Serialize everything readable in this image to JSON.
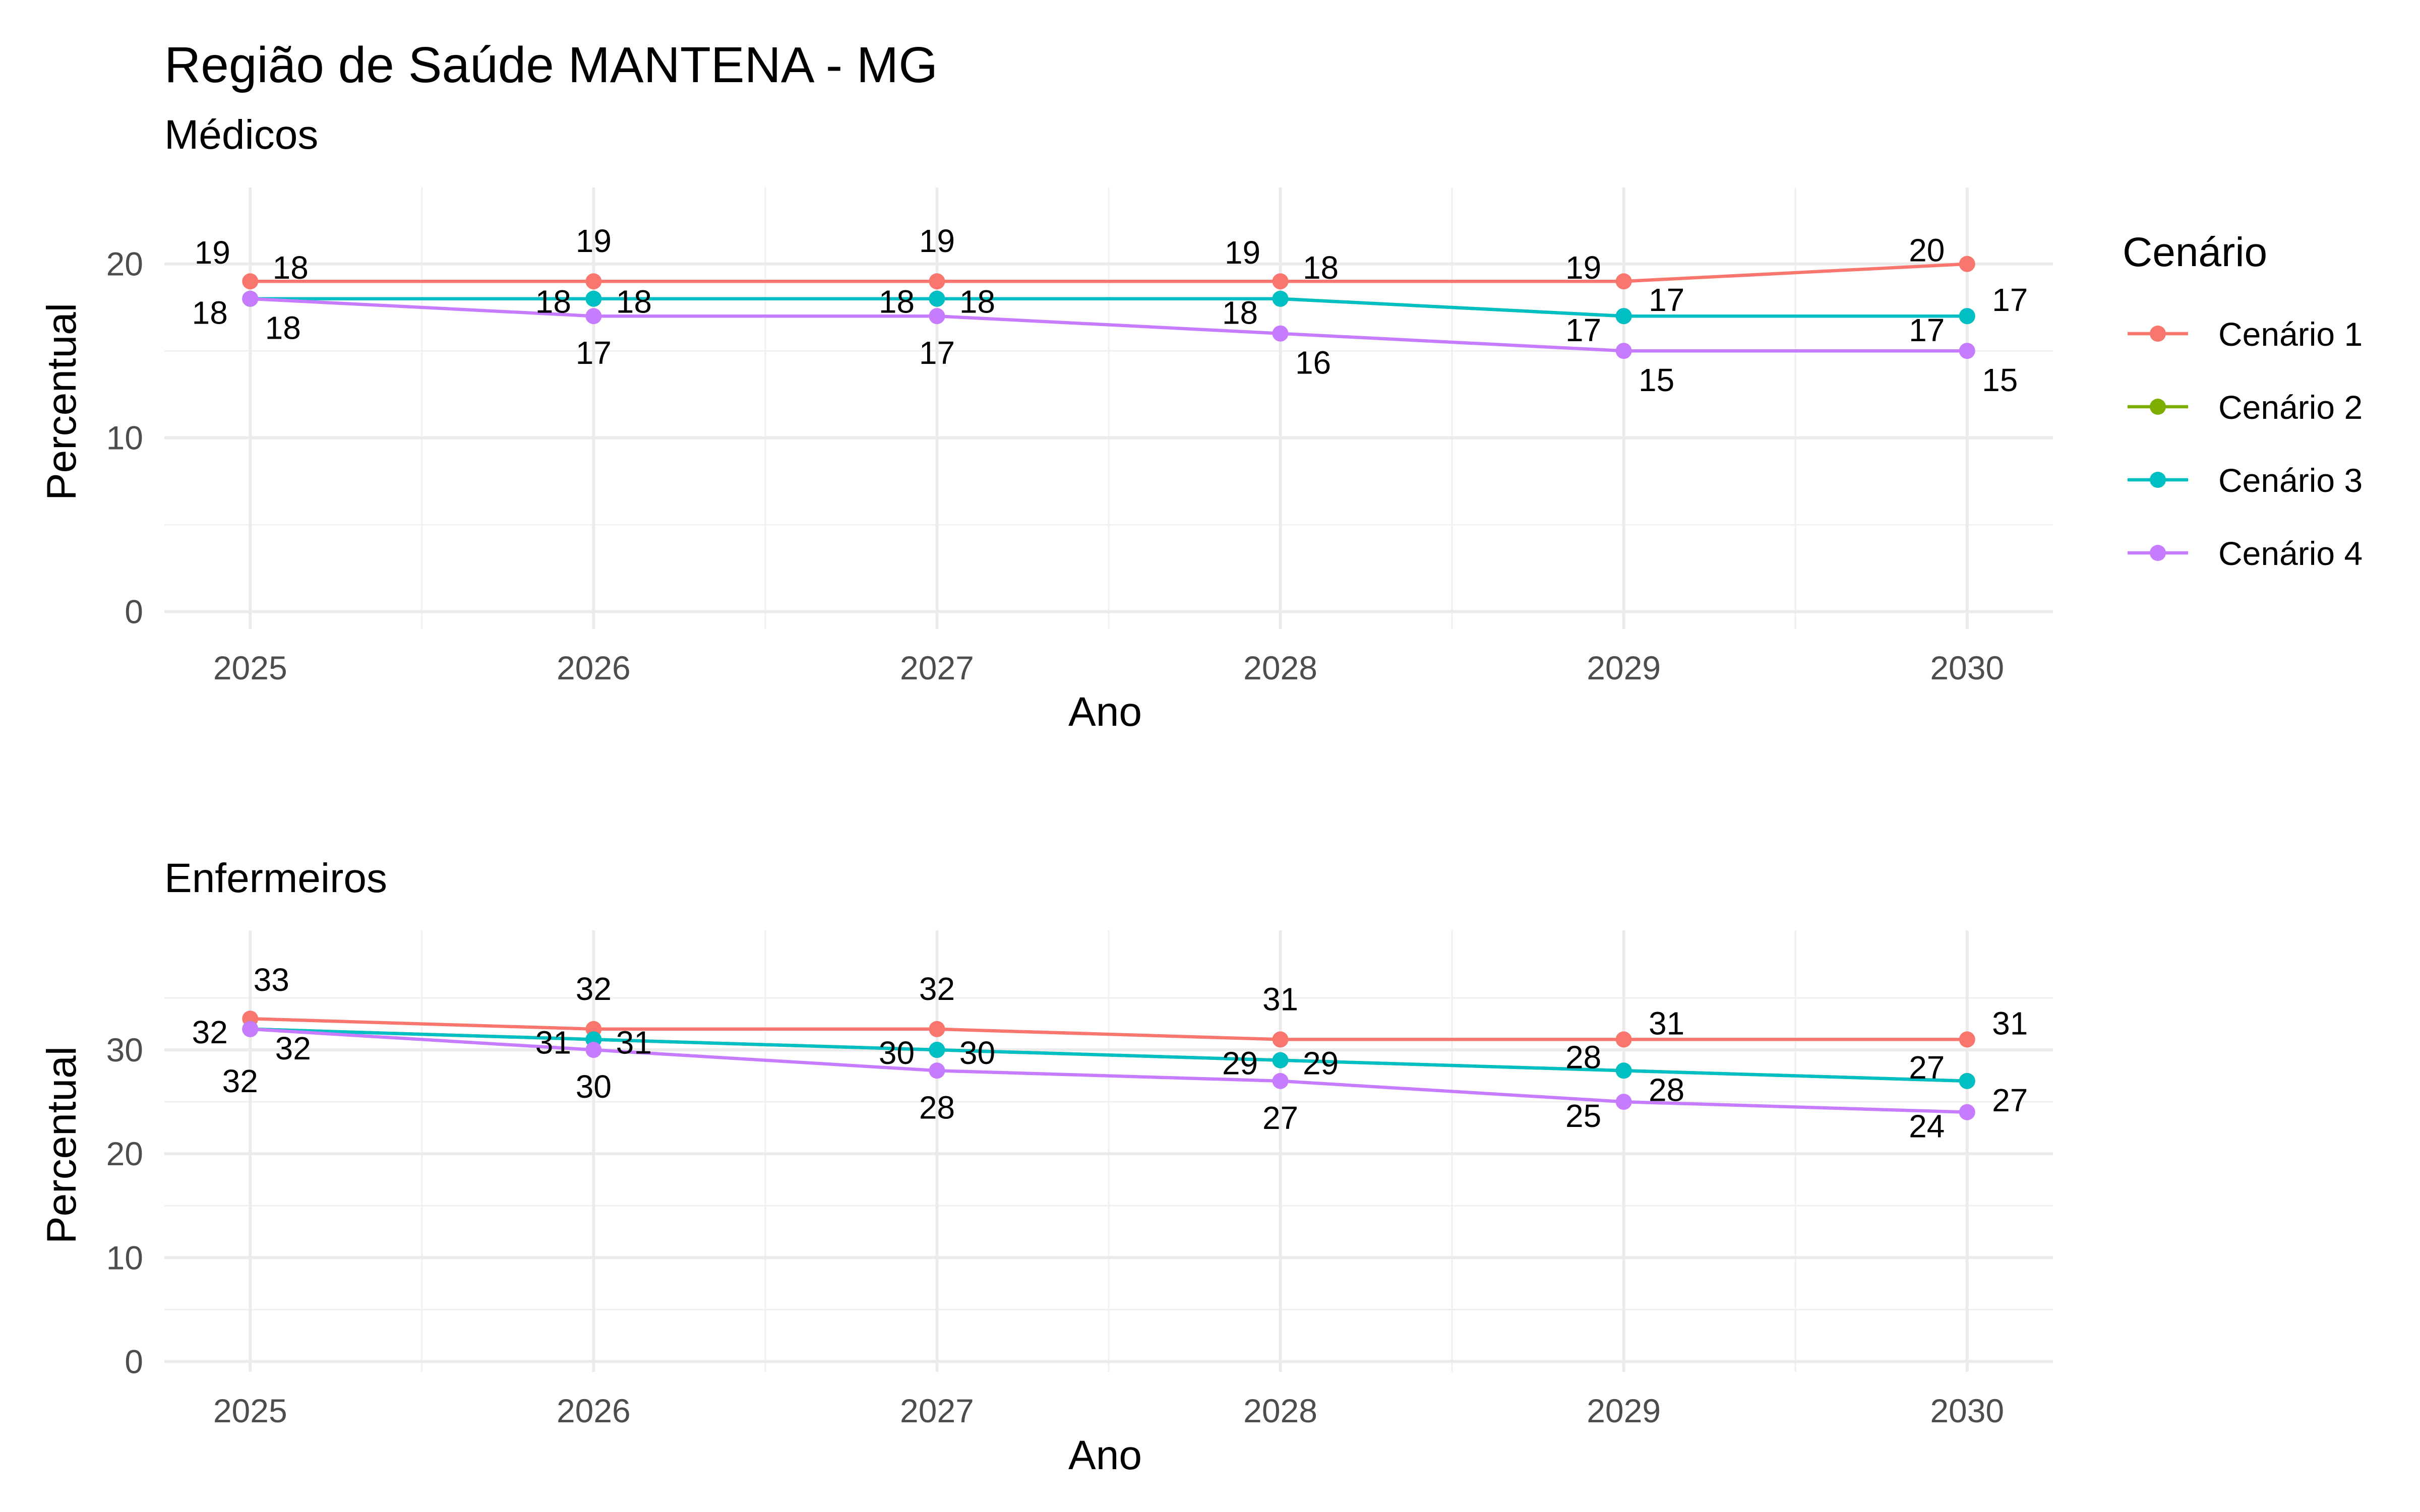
{
  "title": "Região de Saúde MANTENA - MG",
  "legend": {
    "title": "Cenário",
    "position": "right",
    "items": [
      {
        "name": "Cenário 1",
        "color": "#F8766D"
      },
      {
        "name": "Cenário 2",
        "color": "#7CAE00"
      },
      {
        "name": "Cenário 3",
        "color": "#00BFC4"
      },
      {
        "name": "Cenário 4",
        "color": "#C77CFF"
      }
    ]
  },
  "chart_data": [
    {
      "type": "line",
      "subtitle": "Médicos",
      "xlabel": "Ano",
      "ylabel": "Percentual",
      "x": [
        2025,
        2026,
        2027,
        2028,
        2029,
        2030
      ],
      "xticks": [
        "2025",
        "2026",
        "2027",
        "2028",
        "2029",
        "2030"
      ],
      "yticks": [
        "0",
        "10",
        "20"
      ],
      "ylim": [
        -1,
        24.4
      ],
      "grid": true,
      "series": [
        {
          "name": "Cenário 1",
          "color": "#F8766D",
          "values": [
            19,
            19,
            19,
            19,
            19,
            20
          ]
        },
        {
          "name": "Cenário 2",
          "color": "#7CAE00",
          "values": [
            18,
            18,
            18,
            18,
            17,
            17
          ]
        },
        {
          "name": "Cenário 3",
          "color": "#00BFC4",
          "values": [
            18,
            18,
            18,
            18,
            17,
            17
          ]
        },
        {
          "name": "Cenário 4",
          "color": "#C77CFF",
          "values": [
            18,
            17,
            17,
            16,
            15,
            15
          ]
        }
      ],
      "data_labels": [
        {
          "x": 2025,
          "y": 19,
          "text": "19",
          "pos": "up-left"
        },
        {
          "x": 2025,
          "y": 19,
          "text": "18",
          "pos": "right-small"
        },
        {
          "x": 2025,
          "y": 18,
          "text": "18",
          "pos": "left-down"
        },
        {
          "x": 2025,
          "y": 18,
          "text": "18",
          "pos": "down-right"
        },
        {
          "x": 2026,
          "y": 19,
          "text": "19",
          "pos": "up"
        },
        {
          "x": 2026,
          "y": 18,
          "text": "18",
          "pos": "left"
        },
        {
          "x": 2026,
          "y": 18,
          "text": "18",
          "pos": "right"
        },
        {
          "x": 2026,
          "y": 17,
          "text": "17",
          "pos": "down"
        },
        {
          "x": 2027,
          "y": 19,
          "text": "19",
          "pos": "up"
        },
        {
          "x": 2027,
          "y": 18,
          "text": "18",
          "pos": "left"
        },
        {
          "x": 2027,
          "y": 18,
          "text": "18",
          "pos": "right"
        },
        {
          "x": 2027,
          "y": 17,
          "text": "17",
          "pos": "down"
        },
        {
          "x": 2028,
          "y": 19,
          "text": "19",
          "pos": "up-left"
        },
        {
          "x": 2028,
          "y": 19,
          "text": "18",
          "pos": "right-small"
        },
        {
          "x": 2028,
          "y": 18,
          "text": "18",
          "pos": "left-down"
        },
        {
          "x": 2028,
          "y": 16,
          "text": "16",
          "pos": "down-right"
        },
        {
          "x": 2029,
          "y": 19,
          "text": "19",
          "pos": "left-up"
        },
        {
          "x": 2029,
          "y": 17,
          "text": "17",
          "pos": "right-up"
        },
        {
          "x": 2029,
          "y": 17,
          "text": "17",
          "pos": "left-down"
        },
        {
          "x": 2029,
          "y": 15,
          "text": "15",
          "pos": "down-right"
        },
        {
          "x": 2030,
          "y": 20,
          "text": "20",
          "pos": "left-up"
        },
        {
          "x": 2030,
          "y": 17,
          "text": "17",
          "pos": "right-up"
        },
        {
          "x": 2030,
          "y": 17,
          "text": "17",
          "pos": "left-down"
        },
        {
          "x": 2030,
          "y": 15,
          "text": "15",
          "pos": "down-right"
        }
      ]
    },
    {
      "type": "line",
      "subtitle": "Enfermeiros",
      "xlabel": "Ano",
      "ylabel": "Percentual",
      "x": [
        2025,
        2026,
        2027,
        2028,
        2029,
        2030
      ],
      "xticks": [
        "2025",
        "2026",
        "2027",
        "2028",
        "2029",
        "2030"
      ],
      "yticks": [
        "0",
        "10",
        "20",
        "30"
      ],
      "ylim": [
        -1,
        41.5
      ],
      "grid": true,
      "series": [
        {
          "name": "Cenário 1",
          "color": "#F8766D",
          "values": [
            33,
            32,
            32,
            31,
            31,
            31
          ]
        },
        {
          "name": "Cenário 2",
          "color": "#7CAE00",
          "values": [
            32,
            31,
            30,
            29,
            28,
            27
          ]
        },
        {
          "name": "Cenário 3",
          "color": "#00BFC4",
          "values": [
            32,
            31,
            30,
            29,
            28,
            27
          ]
        },
        {
          "name": "Cenário 4",
          "color": "#C77CFF",
          "values": [
            32,
            30,
            28,
            27,
            25,
            24
          ]
        }
      ],
      "data_labels": [
        {
          "x": 2025,
          "y": 33,
          "text": "33",
          "pos": "up-right"
        },
        {
          "x": 2025,
          "y": 32,
          "text": "32",
          "pos": "left"
        },
        {
          "x": 2025,
          "y": 32,
          "text": "32",
          "pos": "right-down"
        },
        {
          "x": 2025,
          "y": 32,
          "text": "32",
          "pos": "far-down"
        },
        {
          "x": 2026,
          "y": 32,
          "text": "32",
          "pos": "up"
        },
        {
          "x": 2026,
          "y": 31,
          "text": "31",
          "pos": "left"
        },
        {
          "x": 2026,
          "y": 31,
          "text": "31",
          "pos": "right"
        },
        {
          "x": 2026,
          "y": 30,
          "text": "30",
          "pos": "down"
        },
        {
          "x": 2027,
          "y": 32,
          "text": "32",
          "pos": "up"
        },
        {
          "x": 2027,
          "y": 30,
          "text": "30",
          "pos": "left"
        },
        {
          "x": 2027,
          "y": 30,
          "text": "30",
          "pos": "right"
        },
        {
          "x": 2027,
          "y": 28,
          "text": "28",
          "pos": "down"
        },
        {
          "x": 2028,
          "y": 31,
          "text": "31",
          "pos": "up"
        },
        {
          "x": 2028,
          "y": 29,
          "text": "29",
          "pos": "left"
        },
        {
          "x": 2028,
          "y": 29,
          "text": "29",
          "pos": "right"
        },
        {
          "x": 2028,
          "y": 27,
          "text": "27",
          "pos": "down"
        },
        {
          "x": 2029,
          "y": 31,
          "text": "31",
          "pos": "right-up"
        },
        {
          "x": 2029,
          "y": 28,
          "text": "28",
          "pos": "left-up"
        },
        {
          "x": 2029,
          "y": 28,
          "text": "28",
          "pos": "right-down"
        },
        {
          "x": 2029,
          "y": 25,
          "text": "25",
          "pos": "left-down"
        },
        {
          "x": 2030,
          "y": 31,
          "text": "31",
          "pos": "right-up"
        },
        {
          "x": 2030,
          "y": 27,
          "text": "27",
          "pos": "left-up"
        },
        {
          "x": 2030,
          "y": 27,
          "text": "27",
          "pos": "right-down"
        },
        {
          "x": 2030,
          "y": 24,
          "text": "24",
          "pos": "left-down"
        }
      ]
    }
  ]
}
